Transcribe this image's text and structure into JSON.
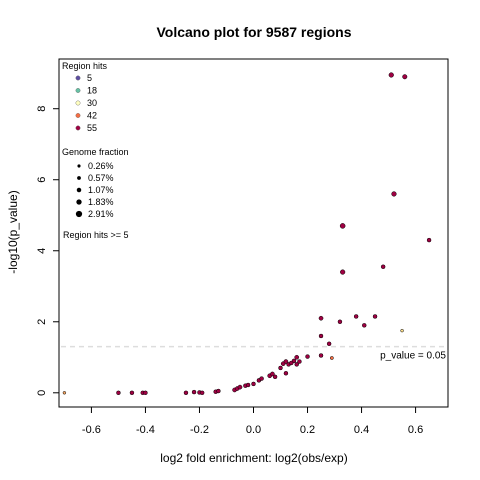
{
  "chart_data": {
    "type": "scatter",
    "title": "Volcano plot for 9587 regions",
    "xlabel": "log2 fold enrichment: log2(obs/exp)",
    "ylabel": "-log10(p_value)",
    "xlim": [
      -0.72,
      0.72
    ],
    "ylim": [
      -0.4,
      9.4
    ],
    "xticks": [
      "-0.6",
      "-0.4",
      "-0.2",
      "0.0",
      "0.2",
      "0.4",
      "0.6"
    ],
    "yticks": [
      "0",
      "2",
      "4",
      "6",
      "8"
    ],
    "grid": false,
    "threshold": {
      "y": 1.3,
      "label": "p_value = 0.05",
      "color": "#dddddd"
    },
    "legend_region_hits": {
      "title": "Region hits",
      "placement": "top-left",
      "items": [
        {
          "label": "5",
          "color": "#5e4fa2"
        },
        {
          "label": "18",
          "color": "#66c2a5"
        },
        {
          "label": "30",
          "color": "#ffffbf"
        },
        {
          "label": "42",
          "color": "#f46d43"
        },
        {
          "label": "55",
          "color": "#9e0142"
        }
      ]
    },
    "legend_genome_fraction": {
      "title": "Genome fraction",
      "items": [
        {
          "label": "0.26%",
          "size": 0.26
        },
        {
          "label": "0.57%",
          "size": 0.57
        },
        {
          "label": "1.07%",
          "size": 1.07
        },
        {
          "label": "1.83%",
          "size": 1.83
        },
        {
          "label": "2.91%",
          "size": 2.91
        }
      ]
    },
    "note": "Region hits >= 5",
    "points": [
      {
        "x": -0.7,
        "y": 0.0,
        "color": "#f4a460",
        "size": 0.6
      },
      {
        "x": -0.5,
        "y": 0.0,
        "color": "#9e0142",
        "size": 1.2
      },
      {
        "x": -0.45,
        "y": 0.0,
        "color": "#9e0142",
        "size": 1.2
      },
      {
        "x": -0.41,
        "y": 0.0,
        "color": "#9e0142",
        "size": 1.2
      },
      {
        "x": -0.4,
        "y": 0.0,
        "color": "#9e0142",
        "size": 1.2
      },
      {
        "x": -0.25,
        "y": 0.0,
        "color": "#9e0142",
        "size": 1.2
      },
      {
        "x": -0.22,
        "y": 0.02,
        "color": "#9e0142",
        "size": 1.2
      },
      {
        "x": -0.2,
        "y": 0.01,
        "color": "#9e0142",
        "size": 1.2
      },
      {
        "x": -0.19,
        "y": 0.0,
        "color": "#9e0142",
        "size": 1.2
      },
      {
        "x": -0.14,
        "y": 0.03,
        "color": "#9e0142",
        "size": 1.2
      },
      {
        "x": -0.13,
        "y": 0.05,
        "color": "#9e0142",
        "size": 1.2
      },
      {
        "x": -0.07,
        "y": 0.08,
        "color": "#9e0142",
        "size": 1.3
      },
      {
        "x": -0.06,
        "y": 0.12,
        "color": "#9e0142",
        "size": 1.3
      },
      {
        "x": -0.05,
        "y": 0.16,
        "color": "#9e0142",
        "size": 1.3
      },
      {
        "x": -0.03,
        "y": 0.2,
        "color": "#9e0142",
        "size": 1.2
      },
      {
        "x": -0.02,
        "y": 0.22,
        "color": "#9e0142",
        "size": 1.2
      },
      {
        "x": 0.0,
        "y": 0.25,
        "color": "#9e0142",
        "size": 1.2
      },
      {
        "x": 0.02,
        "y": 0.35,
        "color": "#9e0142",
        "size": 1.2
      },
      {
        "x": 0.03,
        "y": 0.4,
        "color": "#9e0142",
        "size": 1.2
      },
      {
        "x": 0.06,
        "y": 0.48,
        "color": "#9e0142",
        "size": 1.3
      },
      {
        "x": 0.07,
        "y": 0.53,
        "color": "#9e0142",
        "size": 1.3
      },
      {
        "x": 0.08,
        "y": 0.45,
        "color": "#9e0142",
        "size": 1.2
      },
      {
        "x": 0.1,
        "y": 0.7,
        "color": "#9e0142",
        "size": 1.2
      },
      {
        "x": 0.11,
        "y": 0.82,
        "color": "#9e0142",
        "size": 1.3
      },
      {
        "x": 0.12,
        "y": 0.55,
        "color": "#9e0142",
        "size": 1.2
      },
      {
        "x": 0.12,
        "y": 0.88,
        "color": "#9e0142",
        "size": 1.3
      },
      {
        "x": 0.13,
        "y": 0.8,
        "color": "#9e0142",
        "size": 1.2
      },
      {
        "x": 0.14,
        "y": 0.84,
        "color": "#9e0142",
        "size": 1.2
      },
      {
        "x": 0.15,
        "y": 0.9,
        "color": "#9e0142",
        "size": 1.2
      },
      {
        "x": 0.16,
        "y": 1.0,
        "color": "#9e0142",
        "size": 1.3
      },
      {
        "x": 0.16,
        "y": 0.8,
        "color": "#9e0142",
        "size": 1.2
      },
      {
        "x": 0.17,
        "y": 0.88,
        "color": "#9e0142",
        "size": 1.2
      },
      {
        "x": 0.2,
        "y": 1.02,
        "color": "#9e0142",
        "size": 1.2
      },
      {
        "x": 0.25,
        "y": 1.05,
        "color": "#9e0142",
        "size": 1.2
      },
      {
        "x": 0.25,
        "y": 2.1,
        "color": "#9e0142",
        "size": 1.3
      },
      {
        "x": 0.25,
        "y": 1.6,
        "color": "#9e0142",
        "size": 1.2
      },
      {
        "x": 0.28,
        "y": 1.38,
        "color": "#9e0142",
        "size": 1.2
      },
      {
        "x": 0.29,
        "y": 0.98,
        "color": "#f46d43",
        "size": 0.8
      },
      {
        "x": 0.32,
        "y": 2.0,
        "color": "#9e0142",
        "size": 1.2
      },
      {
        "x": 0.33,
        "y": 4.7,
        "color": "#9e0142",
        "size": 1.8
      },
      {
        "x": 0.33,
        "y": 3.4,
        "color": "#9e0142",
        "size": 1.6
      },
      {
        "x": 0.38,
        "y": 2.15,
        "color": "#9e0142",
        "size": 1.2
      },
      {
        "x": 0.41,
        "y": 1.9,
        "color": "#9e0142",
        "size": 1.2
      },
      {
        "x": 0.45,
        "y": 2.15,
        "color": "#9e0142",
        "size": 1.2
      },
      {
        "x": 0.48,
        "y": 3.55,
        "color": "#9e0142",
        "size": 1.2
      },
      {
        "x": 0.51,
        "y": 8.95,
        "color": "#9e0142",
        "size": 1.6
      },
      {
        "x": 0.52,
        "y": 5.6,
        "color": "#9e0142",
        "size": 1.6
      },
      {
        "x": 0.55,
        "y": 1.75,
        "color": "#fee08b",
        "size": 0.6
      },
      {
        "x": 0.56,
        "y": 8.9,
        "color": "#9e0142",
        "size": 1.5
      },
      {
        "x": 0.65,
        "y": 4.3,
        "color": "#9e0142",
        "size": 1.2
      }
    ]
  }
}
